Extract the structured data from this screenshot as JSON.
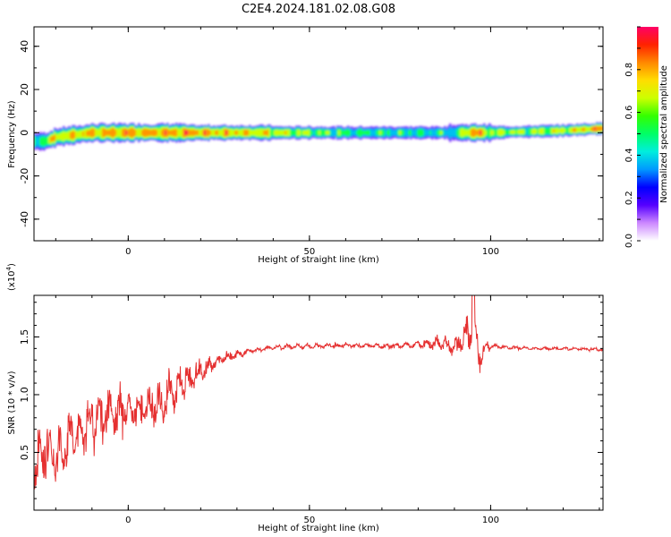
{
  "title": "C2E4.2024.181.02.08.G08",
  "chart_data": [
    {
      "type": "heatmap",
      "xlabel": "Height of straight line (km)",
      "ylabel": "Frequency (Hz)",
      "xlim": [
        -26,
        131
      ],
      "ylim": [
        -50,
        49
      ],
      "xticks": [
        0,
        50,
        100
      ],
      "yticks": [
        -40,
        -20,
        0,
        20,
        40
      ],
      "colorbar": {
        "label": "Normalized spectral amplitude",
        "range": [
          0,
          1
        ],
        "ticks": [
          "0.0",
          "0.2",
          "0.4",
          "0.6",
          "0.8"
        ],
        "colormap": [
          "#ffffff",
          "#cc88ff",
          "#5500ff",
          "#0000ff",
          "#0099ff",
          "#00eedd",
          "#00ff66",
          "#33ff00",
          "#ccff00",
          "#ffdd00",
          "#ff8800",
          "#ff2200",
          "#ff0066"
        ]
      },
      "ridge": {
        "center_frequency_hz": [
          [
            -26,
            -4
          ],
          [
            -23,
            -4
          ],
          [
            -20,
            -2
          ],
          [
            -10,
            0
          ],
          [
            20,
            0
          ],
          [
            90,
            0
          ],
          [
            100,
            0
          ],
          [
            120,
            1
          ],
          [
            131,
            2
          ]
        ],
        "peak_amplitude": [
          [
            -26,
            0.55
          ],
          [
            -20,
            0.75
          ],
          [
            0,
            0.88
          ],
          [
            30,
            0.82
          ],
          [
            60,
            0.55
          ],
          [
            90,
            0.5
          ],
          [
            95,
            0.9
          ],
          [
            100,
            0.65
          ],
          [
            120,
            0.7
          ],
          [
            131,
            0.9
          ]
        ]
      }
    },
    {
      "type": "line",
      "xlabel": "Height of straight line (km)",
      "ylabel": "SNR (10 * v/v)",
      "y_multiplier": "(x10^4)",
      "y_multiplier_base": "x10",
      "y_multiplier_exp": "4",
      "xlim": [
        -26,
        131
      ],
      "ylim": [
        0.0,
        1.86
      ],
      "xticks": [
        0,
        50,
        100
      ],
      "yticks": [
        0.5,
        1.0,
        1.5
      ],
      "ytick_labels": [
        "0.5",
        "1.0",
        "1.5"
      ],
      "series": [
        {
          "color": "#e53030",
          "envelope": {
            "x": [
              -26,
              -20,
              -15,
              -10,
              -5,
              0,
              5,
              10,
              15,
              20,
              25,
              30,
              35,
              40,
              50,
              60,
              70,
              80,
              85,
              90,
              93,
              95,
              97,
              99,
              100,
              110,
              120,
              131
            ],
            "mean": [
              0.45,
              0.5,
              0.6,
              0.75,
              0.85,
              0.85,
              0.9,
              0.95,
              1.1,
              1.2,
              1.3,
              1.35,
              1.39,
              1.41,
              1.42,
              1.43,
              1.42,
              1.43,
              1.45,
              1.42,
              1.5,
              1.55,
              1.35,
              1.4,
              1.42,
              1.4,
              1.4,
              1.39
            ],
            "amplitude": [
              0.4,
              0.35,
              0.35,
              0.3,
              0.3,
              0.25,
              0.25,
              0.3,
              0.25,
              0.15,
              0.07,
              0.05,
              0.03,
              0.03,
              0.03,
              0.03,
              0.03,
              0.05,
              0.08,
              0.12,
              0.2,
              0.3,
              0.25,
              0.08,
              0.03,
              0.02,
              0.02,
              0.02
            ]
          }
        }
      ]
    }
  ]
}
